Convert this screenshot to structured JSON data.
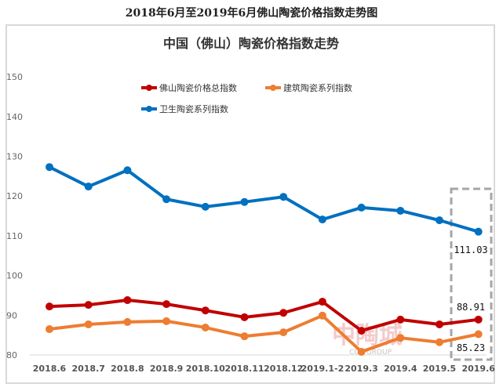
{
  "page_title": "2018年6月至2019年6月佛山陶瓷价格指数走势图",
  "watermark": {
    "text": "中陶城",
    "sub": "CCC GROUP"
  },
  "chart_data": {
    "type": "line",
    "title": "中国（佛山）陶瓷价格指数走势",
    "categories": [
      "2018.6",
      "2018.7",
      "2018.8",
      "2018.9",
      "2018.10",
      "2018.11",
      "2018.12",
      "2019.1-2",
      "2019.3",
      "2019.4",
      "2019.5",
      "2019.6"
    ],
    "ylim": [
      80,
      150
    ],
    "yticks": [
      80,
      90,
      100,
      110,
      120,
      130,
      140,
      150
    ],
    "grid": "horizontal baseline only",
    "legend_placement": "top-left",
    "series": [
      {
        "name": "佛山陶瓷价格总指数",
        "color": "#C00000",
        "values": [
          92.2,
          92.6,
          93.8,
          92.8,
          91.2,
          89.5,
          90.6,
          93.4,
          86.1,
          88.9,
          87.7,
          88.91
        ],
        "last_label": "88.91"
      },
      {
        "name": "建筑陶瓷系列指数",
        "color": "#ED7D31",
        "values": [
          86.5,
          87.7,
          88.3,
          88.5,
          86.9,
          84.7,
          85.7,
          89.9,
          80.8,
          84.3,
          83.2,
          85.23
        ],
        "last_label": "85.23"
      },
      {
        "name": "卫生陶瓷系列指数",
        "color": "#0070C0",
        "values": [
          127.3,
          122.4,
          126.5,
          119.2,
          117.3,
          118.5,
          119.8,
          114.1,
          117.1,
          116.3,
          113.9,
          111.03
        ],
        "last_label": "111.03"
      }
    ],
    "highlight_box_color": "#a6a6a6"
  }
}
